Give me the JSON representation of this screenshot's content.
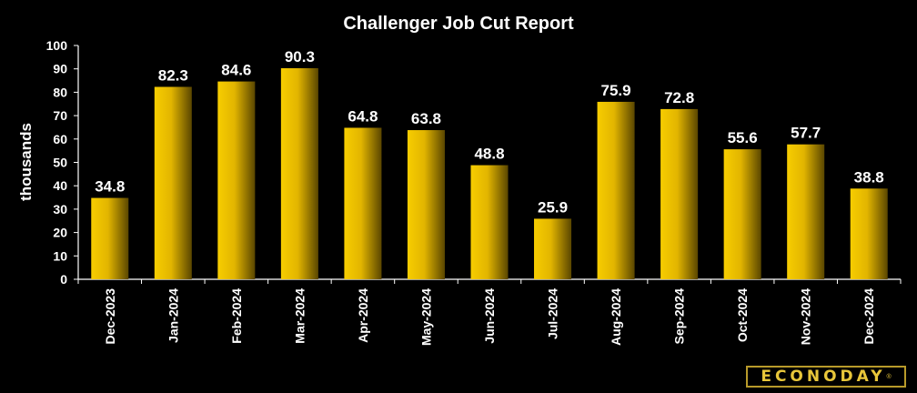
{
  "chart_data": {
    "type": "bar",
    "title": "Challenger Job Cut Report",
    "ylabel": "thousands",
    "xlabel": "",
    "ylim": [
      0,
      100
    ],
    "yticks": [
      0,
      10,
      20,
      30,
      40,
      50,
      60,
      70,
      80,
      90,
      100
    ],
    "grid": false,
    "categories": [
      "Dec-2023",
      "Jan-2024",
      "Feb-2024",
      "Mar-2024",
      "Apr-2024",
      "May-2024",
      "Jun-2024",
      "Jul-2024",
      "Aug-2024",
      "Sep-2024",
      "Oct-2024",
      "Nov-2024",
      "Dec-2024"
    ],
    "values": [
      34.8,
      82.3,
      84.6,
      90.3,
      64.8,
      63.8,
      48.8,
      25.9,
      75.9,
      72.8,
      55.6,
      57.7,
      38.8
    ],
    "value_labels": [
      "34.8",
      "82.3",
      "84.6",
      "90.3",
      "64.8",
      "63.8",
      "48.8",
      "25.9",
      "75.9",
      "72.8",
      "55.6",
      "57.7",
      "38.8"
    ],
    "colors": {
      "background": "#000000",
      "bar_light": "#f7cd00",
      "bar_dark": "#5a4600",
      "text": "#ffffff",
      "axis": "#ffffff"
    }
  },
  "logo": {
    "text": "ECONODAY",
    "mark": "®"
  }
}
